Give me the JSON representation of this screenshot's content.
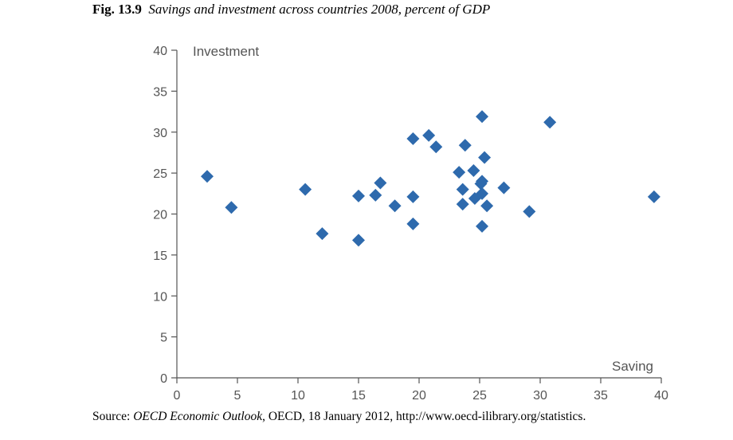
{
  "caption": {
    "fig_num": "Fig. 13.9",
    "title": "Savings and investment across countries 2008, percent of GDP"
  },
  "source": {
    "prefix": "Source: ",
    "publication": "OECD Economic Outlook",
    "rest": ", OECD, 18 January 2012, http://www.oecd-ilibrary.org/statistics."
  },
  "chart_data": {
    "type": "scatter",
    "title": "Savings and investment across countries 2008, percent of GDP",
    "xlabel": "Saving",
    "ylabel": "Investment",
    "xlim": [
      0,
      40
    ],
    "ylim": [
      0,
      40
    ],
    "x_ticks": [
      "0",
      "5",
      "10",
      "15",
      "20",
      "25",
      "30",
      "35",
      "40"
    ],
    "y_ticks": [
      "0",
      "5",
      "10",
      "15",
      "20",
      "25",
      "30",
      "35",
      "40"
    ],
    "grid": false,
    "marker": "diamond",
    "color": "#2e6aad",
    "points": [
      {
        "x": 2.5,
        "y": 24.6
      },
      {
        "x": 4.5,
        "y": 20.8
      },
      {
        "x": 10.6,
        "y": 23.0
      },
      {
        "x": 12.0,
        "y": 17.6
      },
      {
        "x": 15.0,
        "y": 22.2
      },
      {
        "x": 15.0,
        "y": 16.8
      },
      {
        "x": 16.4,
        "y": 22.3
      },
      {
        "x": 16.8,
        "y": 23.8
      },
      {
        "x": 18.0,
        "y": 21.0
      },
      {
        "x": 19.5,
        "y": 29.2
      },
      {
        "x": 19.5,
        "y": 22.1
      },
      {
        "x": 19.5,
        "y": 18.8
      },
      {
        "x": 20.8,
        "y": 29.6
      },
      {
        "x": 21.4,
        "y": 28.2
      },
      {
        "x": 23.3,
        "y": 25.1
      },
      {
        "x": 23.6,
        "y": 23.0
      },
      {
        "x": 23.6,
        "y": 21.2
      },
      {
        "x": 23.8,
        "y": 28.4
      },
      {
        "x": 24.5,
        "y": 25.3
      },
      {
        "x": 24.6,
        "y": 21.9
      },
      {
        "x": 25.1,
        "y": 23.7
      },
      {
        "x": 25.2,
        "y": 24.0
      },
      {
        "x": 25.2,
        "y": 22.5
      },
      {
        "x": 25.2,
        "y": 18.5
      },
      {
        "x": 25.2,
        "y": 31.9
      },
      {
        "x": 25.4,
        "y": 26.9
      },
      {
        "x": 25.6,
        "y": 21.0
      },
      {
        "x": 27.0,
        "y": 23.2
      },
      {
        "x": 29.1,
        "y": 20.3
      },
      {
        "x": 30.8,
        "y": 31.2
      },
      {
        "x": 39.4,
        "y": 22.1
      }
    ]
  }
}
